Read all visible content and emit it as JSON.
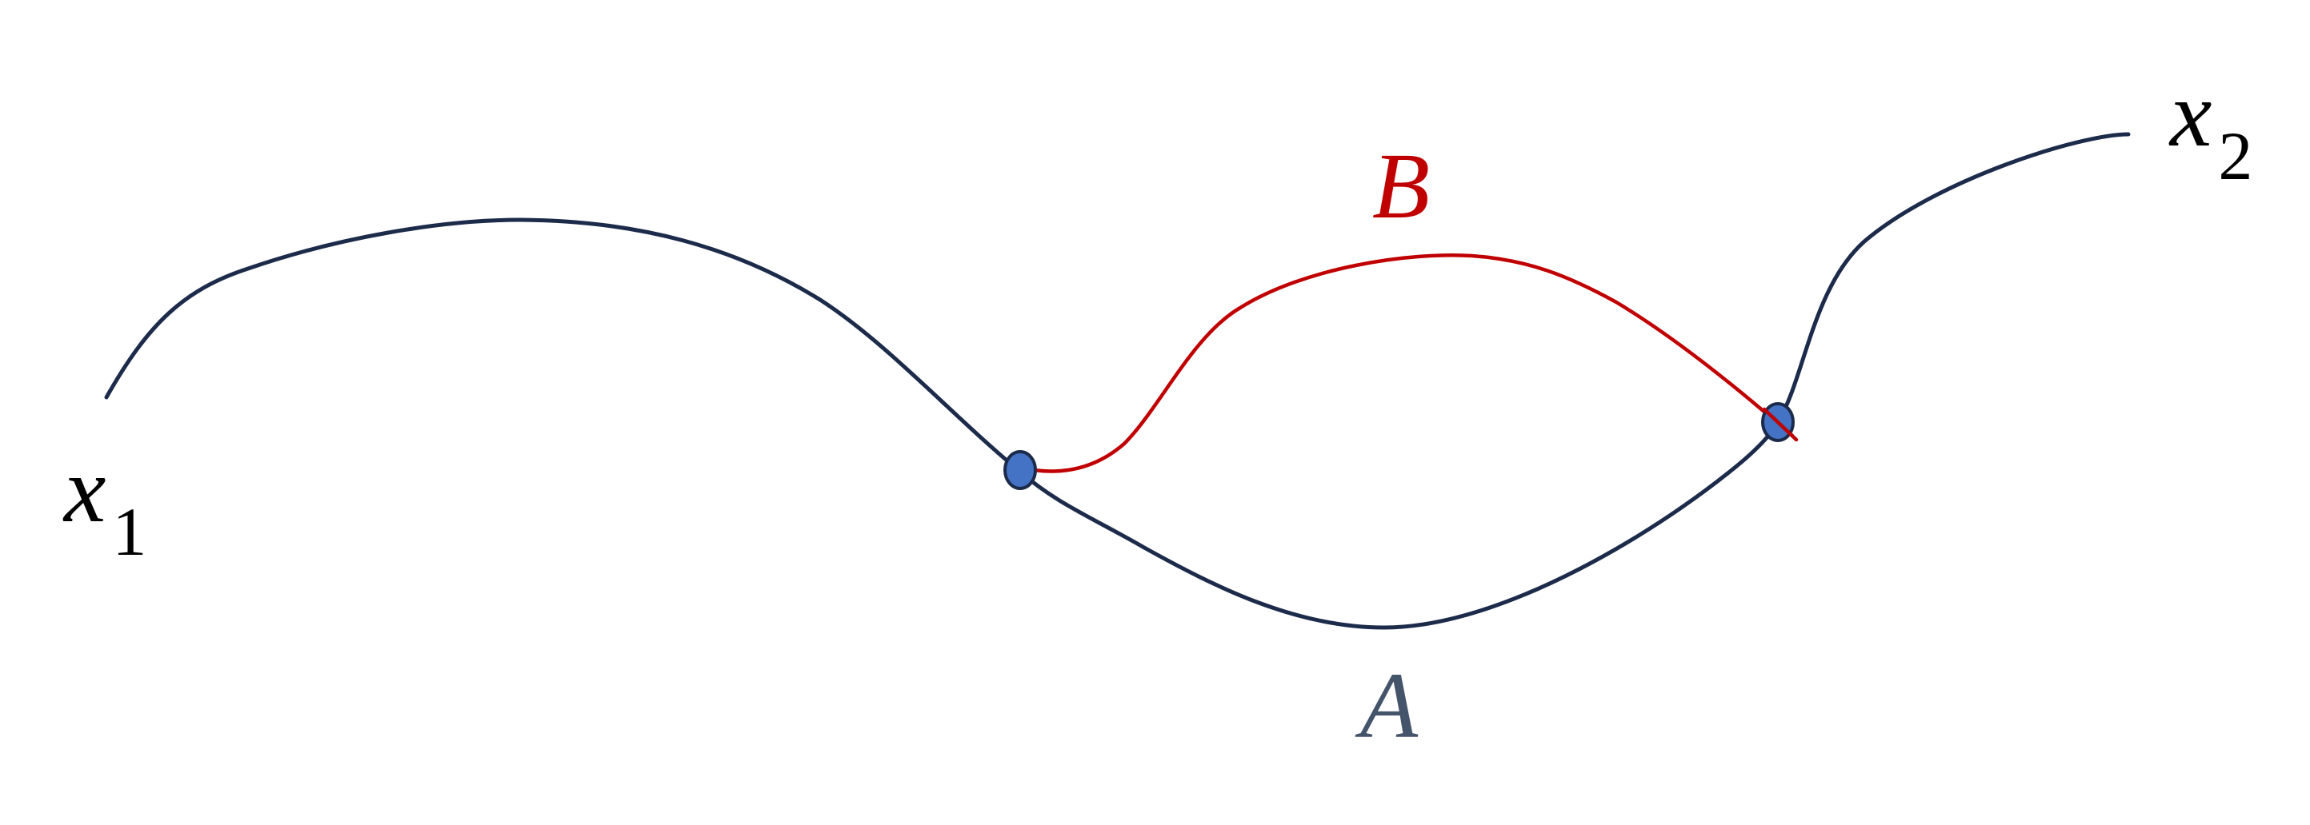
{
  "labels": {
    "start_main": "x",
    "start_sub": "1",
    "end_main": "x",
    "end_sub": "2",
    "path_a": "A",
    "path_b": "B"
  },
  "colors": {
    "main_path": "#1c2b4a",
    "path_b": "#c00000",
    "node_fill": "#4472c4",
    "node_stroke": "#1c2b4a",
    "endpoint_label": "#000000",
    "label_a": "#44546a",
    "label_b": "#c00000"
  }
}
